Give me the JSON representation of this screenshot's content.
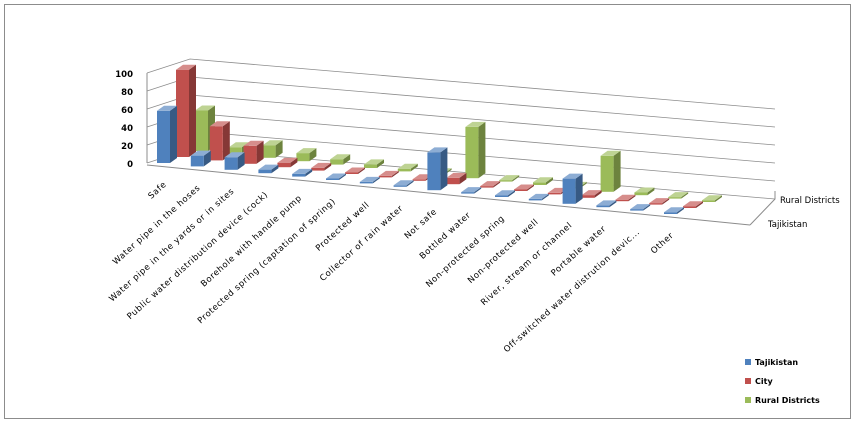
{
  "chart_data": {
    "type": "bar",
    "variant": "3d-clustered-depth",
    "categories": [
      "Safe",
      "Water pipe in the hoses",
      "Water pipe in the yards or in sites",
      "Public water distribution device (cock)",
      "Borehole with handle pump",
      "Protected spring (captation of spring)",
      "Protected well",
      "Collector of rain water",
      "Not safe",
      "Bottled water",
      "Non-protected spring",
      "Non-protected well",
      "River, stream or channel",
      "Portable water",
      "Off-switched water distrution devic...",
      "Other"
    ],
    "series": [
      {
        "name": "Tajikistan",
        "color": "#4f81bd",
        "values": [
          58,
          12,
          14,
          4,
          3,
          1,
          1,
          0.5,
          42,
          0.5,
          2,
          1,
          28,
          2,
          1,
          2
        ]
      },
      {
        "name": "City",
        "color": "#c0504d",
        "values": [
          97,
          38,
          20,
          5,
          3,
          1,
          1,
          0.5,
          7,
          0.5,
          1,
          1,
          3,
          1,
          1,
          2
        ]
      },
      {
        "name": "Rural Districts",
        "color": "#9bbb59",
        "values": [
          45,
          8,
          14,
          9,
          6,
          4,
          3,
          1,
          57,
          1,
          3,
          1,
          40,
          3,
          1,
          2
        ]
      }
    ],
    "depth_axis_labels": [
      "Rural Districts",
      "Tajikistan"
    ],
    "y_ticks": [
      "0",
      "20",
      "40",
      "60",
      "80",
      "100"
    ],
    "ylim": [
      0,
      100
    ],
    "grid": true,
    "legend": "bottom-right"
  }
}
